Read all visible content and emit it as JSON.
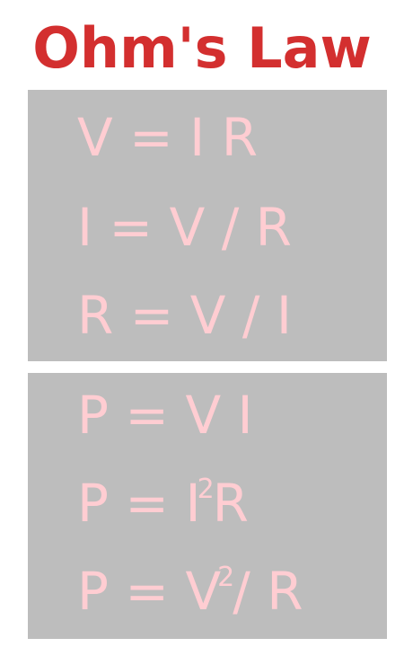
{
  "title": "Ohm's Law",
  "voltage_current_resistance": {
    "formulas": [
      "V = I R",
      "I = V / R",
      "R = V / I"
    ]
  },
  "power": {
    "formulas": [
      {
        "text": "P = V I"
      },
      {
        "prefix": "P = I",
        "superscript": "2",
        "suffix": "R"
      },
      {
        "prefix": "P = V",
        "superscript": "2",
        "suffix": "/ R"
      }
    ]
  },
  "colors": {
    "title": "#d32f2f",
    "panel": "#bdbdbd",
    "formula_text": "#ffcdd2",
    "background": "#ffffff"
  }
}
